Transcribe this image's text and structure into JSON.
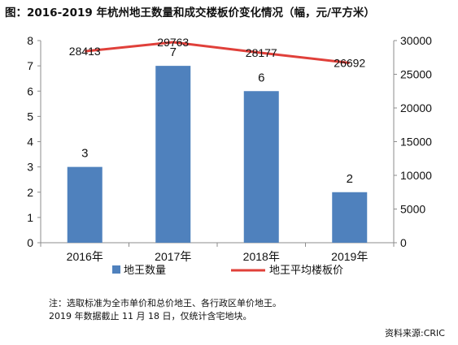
{
  "title": "图：2016-2019 年杭州地王数量和成交楼板价变化情况（幅，元/平方米）",
  "colors": {
    "bar": "#4f81bd",
    "line": "#e0403a",
    "text": "#111111",
    "axis": "#8c8c8c"
  },
  "chart_data": {
    "type": "bar",
    "categories": [
      "2016年",
      "2017年",
      "2018年",
      "2019年"
    ],
    "series": [
      {
        "name": "地王数量",
        "type": "bar",
        "axis": "left",
        "values": [
          3,
          7,
          6,
          2
        ],
        "labels": [
          "3",
          "7",
          "6",
          "2"
        ]
      },
      {
        "name": "地王平均楼板价",
        "type": "line",
        "axis": "right",
        "values": [
          28413,
          29763,
          28177,
          26692
        ],
        "labels": [
          "28413",
          "29763",
          "28177",
          "26692"
        ]
      }
    ],
    "y_left": {
      "ylim": [
        0,
        8
      ],
      "ticks": [
        "0",
        "1",
        "2",
        "3",
        "4",
        "5",
        "6",
        "7",
        "8"
      ]
    },
    "y_right": {
      "ylim": [
        0,
        30000
      ],
      "ticks": [
        "0",
        "5000",
        "10000",
        "15000",
        "20000",
        "25000",
        "30000"
      ]
    },
    "legend_position": "bottom"
  },
  "notes": {
    "line1": "注：选取标准为全市单价和总价地王、各行政区单价地王。",
    "line2": "2019 年数据截止 11 月 18 日，仅统计含宅地块。"
  },
  "source": "资料来源:CRIC"
}
